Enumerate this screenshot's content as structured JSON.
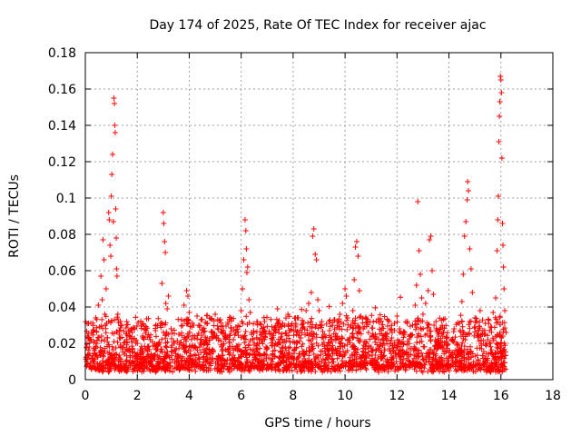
{
  "chart_data": {
    "type": "scatter",
    "title": "Day 174 of 2025, Rate Of TEC Index for receiver ajac",
    "xlabel": "GPS time / hours",
    "ylabel": "ROTI / TECUs",
    "xlim": [
      0,
      18
    ],
    "ylim": [
      0,
      0.18
    ],
    "x_ticks": [
      "0",
      "2",
      "4",
      "6",
      "8",
      "10",
      "12",
      "14",
      "16",
      "18"
    ],
    "y_ticks": [
      "0",
      "0.02",
      "0.04",
      "0.06",
      "0.08",
      "0.1",
      "0.12",
      "0.14",
      "0.16",
      "0.18"
    ],
    "grid": true,
    "marker": "+",
    "color": "#ff0000",
    "series": [
      {
        "name": "ROTI",
        "points": [
          [
            0.05,
            0.01
          ],
          [
            0.08,
            0.024
          ],
          [
            0.1,
            0.014
          ],
          [
            0.12,
            0.031
          ],
          [
            0.15,
            0.018
          ],
          [
            0.2,
            0.022
          ],
          [
            0.25,
            0.012
          ],
          [
            0.3,
            0.027
          ],
          [
            0.35,
            0.016
          ],
          [
            0.4,
            0.034
          ],
          [
            0.45,
            0.02
          ],
          [
            0.5,
            0.041
          ],
          [
            0.55,
            0.029
          ],
          [
            0.6,
            0.057
          ],
          [
            0.65,
            0.044
          ],
          [
            0.68,
            0.077
          ],
          [
            0.72,
            0.066
          ],
          [
            0.75,
            0.036
          ],
          [
            0.8,
            0.05
          ],
          [
            0.82,
            0.031
          ],
          [
            0.85,
            0.023
          ],
          [
            0.9,
            0.092
          ],
          [
            0.92,
            0.088
          ],
          [
            0.95,
            0.074
          ],
          [
            0.98,
            0.068
          ],
          [
            1.0,
            0.101
          ],
          [
            1.02,
            0.113
          ],
          [
            1.05,
            0.124
          ],
          [
            1.08,
            0.087
          ],
          [
            1.1,
            0.155
          ],
          [
            1.12,
            0.152
          ],
          [
            1.13,
            0.14
          ],
          [
            1.15,
            0.136
          ],
          [
            1.17,
            0.094
          ],
          [
            1.19,
            0.078
          ],
          [
            1.2,
            0.061
          ],
          [
            1.22,
            0.057
          ],
          [
            1.25,
            0.036
          ],
          [
            1.3,
            0.025
          ],
          [
            1.35,
            0.019
          ],
          [
            1.4,
            0.03
          ],
          [
            1.5,
            0.014
          ],
          [
            1.6,
            0.021
          ],
          [
            1.7,
            0.017
          ],
          [
            1.8,
            0.026
          ],
          [
            1.9,
            0.012
          ],
          [
            2.0,
            0.02
          ],
          [
            2.1,
            0.015
          ],
          [
            2.2,
            0.024
          ],
          [
            2.3,
            0.011
          ],
          [
            2.4,
            0.018
          ],
          [
            2.5,
            0.022
          ],
          [
            2.6,
            0.013
          ],
          [
            2.7,
            0.027
          ],
          [
            2.8,
            0.019
          ],
          [
            2.9,
            0.031
          ],
          [
            2.95,
            0.053
          ],
          [
            3.0,
            0.092
          ],
          [
            3.02,
            0.086
          ],
          [
            3.05,
            0.076
          ],
          [
            3.08,
            0.07
          ],
          [
            3.1,
            0.042
          ],
          [
            3.15,
            0.039
          ],
          [
            3.2,
            0.046
          ],
          [
            3.3,
            0.028
          ],
          [
            3.4,
            0.021
          ],
          [
            3.5,
            0.017
          ],
          [
            3.6,
            0.025
          ],
          [
            3.7,
            0.033
          ],
          [
            3.8,
            0.041
          ],
          [
            3.9,
            0.049
          ],
          [
            3.95,
            0.046
          ],
          [
            4.0,
            0.037
          ],
          [
            4.1,
            0.029
          ],
          [
            4.2,
            0.024
          ],
          [
            4.3,
            0.035
          ],
          [
            4.4,
            0.018
          ],
          [
            4.5,
            0.027
          ],
          [
            4.6,
            0.02
          ],
          [
            4.7,
            0.031
          ],
          [
            4.8,
            0.015
          ],
          [
            4.9,
            0.023
          ],
          [
            5.0,
            0.036
          ],
          [
            5.1,
            0.028
          ],
          [
            5.2,
            0.033
          ],
          [
            5.3,
            0.019
          ],
          [
            5.4,
            0.025
          ],
          [
            5.5,
            0.016
          ],
          [
            5.6,
            0.034
          ],
          [
            5.7,
            0.022
          ],
          [
            5.8,
            0.029
          ],
          [
            5.9,
            0.017
          ],
          [
            6.0,
            0.038
          ],
          [
            6.05,
            0.05
          ],
          [
            6.1,
            0.066
          ],
          [
            6.15,
            0.088
          ],
          [
            6.18,
            0.082
          ],
          [
            6.2,
            0.072
          ],
          [
            6.22,
            0.059
          ],
          [
            6.25,
            0.062
          ],
          [
            6.3,
            0.044
          ],
          [
            6.35,
            0.037
          ],
          [
            6.4,
            0.026
          ],
          [
            6.5,
            0.019
          ],
          [
            6.6,
            0.023
          ],
          [
            6.7,
            0.014
          ],
          [
            6.8,
            0.021
          ],
          [
            6.9,
            0.032
          ],
          [
            7.0,
            0.017
          ],
          [
            7.1,
            0.025
          ],
          [
            7.2,
            0.019
          ],
          [
            7.3,
            0.028
          ],
          [
            7.4,
            0.039
          ],
          [
            7.5,
            0.022
          ],
          [
            7.6,
            0.031
          ],
          [
            7.7,
            0.018
          ],
          [
            7.8,
            0.036
          ],
          [
            7.9,
            0.027
          ],
          [
            8.0,
            0.021
          ],
          [
            8.1,
            0.03
          ],
          [
            8.2,
            0.034
          ],
          [
            8.3,
            0.023
          ],
          [
            8.4,
            0.029
          ],
          [
            8.5,
            0.038
          ],
          [
            8.6,
            0.042
          ],
          [
            8.7,
            0.048
          ],
          [
            8.75,
            0.079
          ],
          [
            8.8,
            0.083
          ],
          [
            8.85,
            0.069
          ],
          [
            8.9,
            0.066
          ],
          [
            8.95,
            0.044
          ],
          [
            9.0,
            0.038
          ],
          [
            9.1,
            0.032
          ],
          [
            9.2,
            0.025
          ],
          [
            9.3,
            0.019
          ],
          [
            9.4,
            0.027
          ],
          [
            9.5,
            0.021
          ],
          [
            9.6,
            0.033
          ],
          [
            9.7,
            0.024
          ],
          [
            9.8,
            0.036
          ],
          [
            9.9,
            0.042
          ],
          [
            10.0,
            0.05
          ],
          [
            10.05,
            0.046
          ],
          [
            10.1,
            0.034
          ],
          [
            10.2,
            0.029
          ],
          [
            10.3,
            0.038
          ],
          [
            10.35,
            0.055
          ],
          [
            10.4,
            0.073
          ],
          [
            10.45,
            0.076
          ],
          [
            10.5,
            0.068
          ],
          [
            10.55,
            0.049
          ],
          [
            10.6,
            0.035
          ],
          [
            10.7,
            0.028
          ],
          [
            10.8,
            0.021
          ],
          [
            10.9,
            0.026
          ],
          [
            11.0,
            0.018
          ],
          [
            11.1,
            0.024
          ],
          [
            11.2,
            0.016
          ],
          [
            11.3,
            0.022
          ],
          [
            11.4,
            0.027
          ],
          [
            11.5,
            0.019
          ],
          [
            11.6,
            0.025
          ],
          [
            11.7,
            0.017
          ],
          [
            11.8,
            0.023
          ],
          [
            11.9,
            0.031
          ],
          [
            12.0,
            0.035
          ],
          [
            12.1,
            0.028
          ],
          [
            12.2,
            0.021
          ],
          [
            12.3,
            0.026
          ],
          [
            12.4,
            0.032
          ],
          [
            12.5,
            0.024
          ],
          [
            12.6,
            0.03
          ],
          [
            12.7,
            0.041
          ],
          [
            12.75,
            0.052
          ],
          [
            12.8,
            0.098
          ],
          [
            12.85,
            0.071
          ],
          [
            12.9,
            0.058
          ],
          [
            12.95,
            0.045
          ],
          [
            13.0,
            0.036
          ],
          [
            13.1,
            0.042
          ],
          [
            13.2,
            0.049
          ],
          [
            13.25,
            0.077
          ],
          [
            13.3,
            0.079
          ],
          [
            13.35,
            0.06
          ],
          [
            13.4,
            0.047
          ],
          [
            13.5,
            0.032
          ],
          [
            13.6,
            0.024
          ],
          [
            13.7,
            0.018
          ],
          [
            13.8,
            0.026
          ],
          [
            13.9,
            0.021
          ],
          [
            14.0,
            0.015
          ],
          [
            14.1,
            0.022
          ],
          [
            14.2,
            0.028
          ],
          [
            14.3,
            0.019
          ],
          [
            14.4,
            0.031
          ],
          [
            14.5,
            0.043
          ],
          [
            14.55,
            0.058
          ],
          [
            14.6,
            0.079
          ],
          [
            14.65,
            0.087
          ],
          [
            14.7,
            0.099
          ],
          [
            14.72,
            0.109
          ],
          [
            14.75,
            0.104
          ],
          [
            14.8,
            0.072
          ],
          [
            14.85,
            0.061
          ],
          [
            14.9,
            0.048
          ],
          [
            15.0,
            0.034
          ],
          [
            15.1,
            0.027
          ],
          [
            15.2,
            0.038
          ],
          [
            15.3,
            0.025
          ],
          [
            15.4,
            0.031
          ],
          [
            15.5,
            0.022
          ],
          [
            15.6,
            0.029
          ],
          [
            15.7,
            0.037
          ],
          [
            15.8,
            0.045
          ],
          [
            15.85,
            0.071
          ],
          [
            15.88,
            0.088
          ],
          [
            15.9,
            0.101
          ],
          [
            15.92,
            0.131
          ],
          [
            15.94,
            0.145
          ],
          [
            15.96,
            0.153
          ],
          [
            15.98,
            0.167
          ],
          [
            16.0,
            0.165
          ],
          [
            16.02,
            0.158
          ],
          [
            16.04,
            0.122
          ],
          [
            16.06,
            0.086
          ],
          [
            16.08,
            0.074
          ],
          [
            16.1,
            0.062
          ],
          [
            16.12,
            0.05
          ],
          [
            16.15,
            0.038
          ],
          [
            16.2,
            0.026
          ]
        ]
      }
    ]
  }
}
